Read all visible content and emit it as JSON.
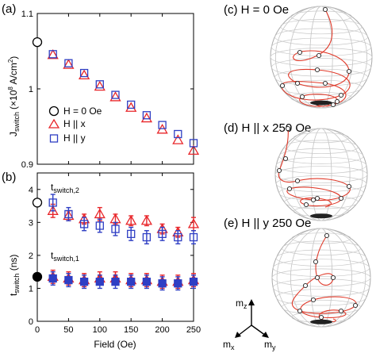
{
  "panels": {
    "a": "(a)",
    "b": "(b)",
    "c": "(c) H = 0 Oe",
    "d": "(d) H || x 250 Oe",
    "e": "(e) H || y 250 Oe"
  },
  "axis_labels": {
    "ya": "J",
    "ya_sub": "switch",
    "ya_unit": "(×10",
    "ya_sup": "8",
    "ya_unit2": " A/cm",
    "ya_sup2": "2",
    "ya_close": ")",
    "yb": "t",
    "yb_sub": "switch",
    "yb_unit": " (ns)",
    "x": "Field (Oe)"
  },
  "annotations": {
    "t2": "t",
    "t2_sub": "switch,2",
    "t1": "t",
    "t1_sub": "switch,1"
  },
  "legend": {
    "items": [
      "H = 0 Oe",
      "H || x",
      "H || y"
    ]
  },
  "axes_text": {
    "mz": "m",
    "mz_sub": "z",
    "mx": "m",
    "mx_sub": "x",
    "my": "m",
    "my_sub": "y"
  },
  "colors": {
    "red": "#e8262a",
    "blue": "#2f3fc4",
    "sphere_grid": "#c8c8c8",
    "trajectory": "#e03a2a"
  },
  "chart_data": [
    {
      "type": "scatter",
      "panel": "a",
      "xlim": [
        0,
        250
      ],
      "ylim": [
        0.9,
        1.1
      ],
      "xticks": [
        0,
        50,
        100,
        150,
        200,
        250
      ],
      "yticks": [
        0.9,
        1,
        1.1
      ],
      "ytick_labels": [
        "0.9",
        "1",
        "1.1"
      ],
      "series": [
        {
          "name": "H = 0 Oe",
          "marker": "circle-open",
          "x": [
            0
          ],
          "y": [
            1.062
          ]
        },
        {
          "name": "H || x",
          "marker": "triangle-open",
          "color": "red",
          "x": [
            25,
            50,
            75,
            100,
            125,
            150,
            175,
            200,
            225,
            250
          ],
          "y": [
            1.045,
            1.032,
            1.018,
            1.003,
            0.989,
            0.975,
            0.961,
            0.946,
            0.932,
            0.918
          ]
        },
        {
          "name": "H || y",
          "marker": "square-open",
          "color": "blue",
          "x": [
            25,
            50,
            75,
            100,
            125,
            150,
            175,
            200,
            225,
            250
          ],
          "y": [
            1.046,
            1.034,
            1.021,
            1.006,
            0.992,
            0.979,
            0.965,
            0.952,
            0.94,
            0.928
          ]
        }
      ]
    },
    {
      "type": "scatter",
      "panel": "b",
      "xlabel": "Field (Oe)",
      "xlim": [
        0,
        250
      ],
      "ylim": [
        0,
        4.5
      ],
      "xticks": [
        0,
        50,
        100,
        150,
        200,
        250
      ],
      "yticks": [
        0,
        1,
        2,
        3,
        4
      ],
      "series": [
        {
          "name": "H = 0 Oe (t_switch,2)",
          "marker": "circle-open",
          "x": [
            0
          ],
          "y": [
            3.6
          ]
        },
        {
          "name": "H = 0 Oe (t_switch,1)",
          "marker": "circle-filled",
          "x": [
            0
          ],
          "y": [
            1.35
          ]
        },
        {
          "name": "H || x (t_switch,2)",
          "marker": "triangle-open",
          "color": "red",
          "x": [
            25,
            50,
            75,
            100,
            125,
            150,
            175,
            200,
            225,
            250
          ],
          "y": [
            3.35,
            3.2,
            3.1,
            3.25,
            3.1,
            3.05,
            3.05,
            2.8,
            2.7,
            2.95
          ],
          "err": [
            0.2,
            0.15,
            0.15,
            0.2,
            0.15,
            0.15,
            0.15,
            0.15,
            0.15,
            0.2
          ]
        },
        {
          "name": "H || y (t_switch,2)",
          "marker": "square-open",
          "color": "blue",
          "x": [
            25,
            50,
            75,
            100,
            125,
            150,
            175,
            200,
            225,
            250
          ],
          "y": [
            3.6,
            3.25,
            2.95,
            2.9,
            2.8,
            2.65,
            2.55,
            2.65,
            2.55,
            2.55
          ],
          "err": [
            0.25,
            0.2,
            0.2,
            0.2,
            0.2,
            0.2,
            0.2,
            0.2,
            0.2,
            0.2
          ]
        },
        {
          "name": "H || x (t_switch,1)",
          "marker": "triangle-filled",
          "color": "red",
          "x": [
            25,
            50,
            75,
            100,
            125,
            150,
            175,
            200,
            225,
            250
          ],
          "y": [
            1.35,
            1.3,
            1.25,
            1.3,
            1.3,
            1.25,
            1.25,
            1.2,
            1.2,
            1.25
          ],
          "err": [
            0.2,
            0.2,
            0.2,
            0.2,
            0.2,
            0.2,
            0.2,
            0.2,
            0.2,
            0.2
          ]
        },
        {
          "name": "H || y (t_switch,1)",
          "marker": "square-filled",
          "color": "blue",
          "x": [
            25,
            50,
            75,
            100,
            125,
            150,
            175,
            200,
            225,
            250
          ],
          "y": [
            1.3,
            1.25,
            1.2,
            1.2,
            1.2,
            1.2,
            1.2,
            1.15,
            1.15,
            1.2
          ],
          "err": [
            0.2,
            0.2,
            0.2,
            0.2,
            0.2,
            0.2,
            0.2,
            0.2,
            0.2,
            0.2
          ]
        }
      ]
    }
  ]
}
